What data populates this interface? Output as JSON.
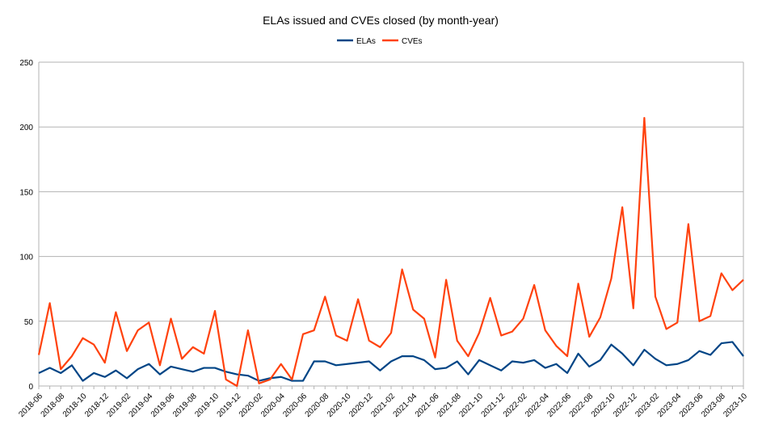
{
  "chart_data": {
    "type": "line",
    "title": "ELAs issued and CVEs closed (by month-year)",
    "xlabel": "",
    "ylabel": "",
    "ylim": [
      0,
      250
    ],
    "yticks": [
      0,
      50,
      100,
      150,
      200,
      250
    ],
    "grid": true,
    "legend_position": "top",
    "categories": [
      "2018-06",
      "2018-07",
      "2018-08",
      "2018-09",
      "2018-10",
      "2018-11",
      "2018-12",
      "2019-01",
      "2019-02",
      "2019-03",
      "2019-04",
      "2019-05",
      "2019-06",
      "2019-07",
      "2019-08",
      "2019-09",
      "2019-10",
      "2019-11",
      "2019-12",
      "2020-01",
      "2020-02",
      "2020-03",
      "2020-04",
      "2020-05",
      "2020-06",
      "2020-07",
      "2020-08",
      "2020-09",
      "2020-10",
      "2020-11",
      "2020-12",
      "2021-01",
      "2021-02",
      "2021-03",
      "2021-04",
      "2021-05",
      "2021-06",
      "2021-07",
      "2021-08",
      "2021-09",
      "2021-10",
      "2021-11",
      "2021-12",
      "2022-01",
      "2022-02",
      "2022-03",
      "2022-04",
      "2022-05",
      "2022-06",
      "2022-07",
      "2022-08",
      "2022-09",
      "2022-10",
      "2022-11",
      "2022-12",
      "2023-01",
      "2023-02",
      "2023-03",
      "2023-04",
      "2023-05",
      "2023-06",
      "2023-07",
      "2023-08",
      "2023-09",
      "2023-10"
    ],
    "series": [
      {
        "name": "ELAs",
        "color": "#004586",
        "values": [
          10,
          14,
          10,
          16,
          4,
          10,
          7,
          12,
          6,
          13,
          17,
          9,
          15,
          13,
          11,
          14,
          14,
          11,
          9,
          8,
          4,
          6,
          7,
          4,
          4,
          19,
          19,
          16,
          17,
          18,
          19,
          12,
          19,
          23,
          23,
          20,
          13,
          14,
          19,
          9,
          20,
          16,
          12,
          19,
          18,
          20,
          14,
          17,
          10,
          25,
          15,
          20,
          32,
          25,
          16,
          28,
          21,
          16,
          17,
          20,
          27,
          24,
          33,
          34,
          23
        ]
      },
      {
        "name": "CVEs",
        "color": "#ff420e",
        "values": [
          24,
          64,
          13,
          23,
          37,
          32,
          18,
          57,
          27,
          43,
          49,
          16,
          52,
          21,
          30,
          25,
          58,
          5,
          0,
          43,
          2,
          5,
          17,
          5,
          40,
          43,
          69,
          39,
          35,
          67,
          35,
          30,
          41,
          90,
          59,
          52,
          22,
          82,
          35,
          23,
          41,
          68,
          39,
          42,
          52,
          78,
          43,
          31,
          23,
          79,
          38,
          53,
          83,
          138,
          60,
          207,
          69,
          44,
          49,
          125,
          50,
          54,
          87,
          74,
          82
        ]
      }
    ]
  }
}
